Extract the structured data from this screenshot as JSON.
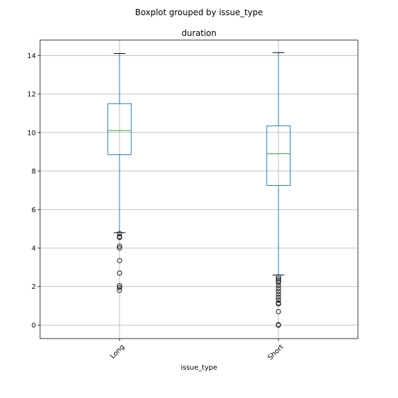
{
  "chart_data": {
    "type": "boxplot",
    "suptitle": "Boxplot grouped by issue_type",
    "title": "duration",
    "xlabel": "issue_type",
    "ylabel": "",
    "ylim": [
      -0.7,
      14.8
    ],
    "yticks": [
      0,
      2,
      4,
      6,
      8,
      10,
      12,
      14
    ],
    "grid": true,
    "categories": [
      "Long",
      "Short"
    ],
    "boxes": [
      {
        "category": "Long",
        "whisker_low": 4.8,
        "q1": 8.85,
        "median": 10.1,
        "q3": 11.5,
        "whisker_high": 14.1,
        "outliers": [
          4.75,
          4.6,
          4.55,
          4.1,
          4.0,
          3.35,
          2.7,
          2.05,
          1.95,
          1.8
        ]
      },
      {
        "category": "Short",
        "whisker_low": 2.6,
        "q1": 7.25,
        "median": 8.9,
        "q3": 10.35,
        "whisker_high": 14.15,
        "outliers": [
          2.5,
          2.4,
          2.3,
          2.2,
          2.05,
          1.9,
          1.75,
          1.6,
          1.45,
          1.3,
          1.15,
          1.1,
          0.7,
          0.02,
          0.0
        ]
      }
    ],
    "colors": {
      "box": "#1f77b4",
      "median": "#2ca02c",
      "whisker_cap": "#000000",
      "grid": "#b0b0b0",
      "axes": "#000000"
    }
  }
}
